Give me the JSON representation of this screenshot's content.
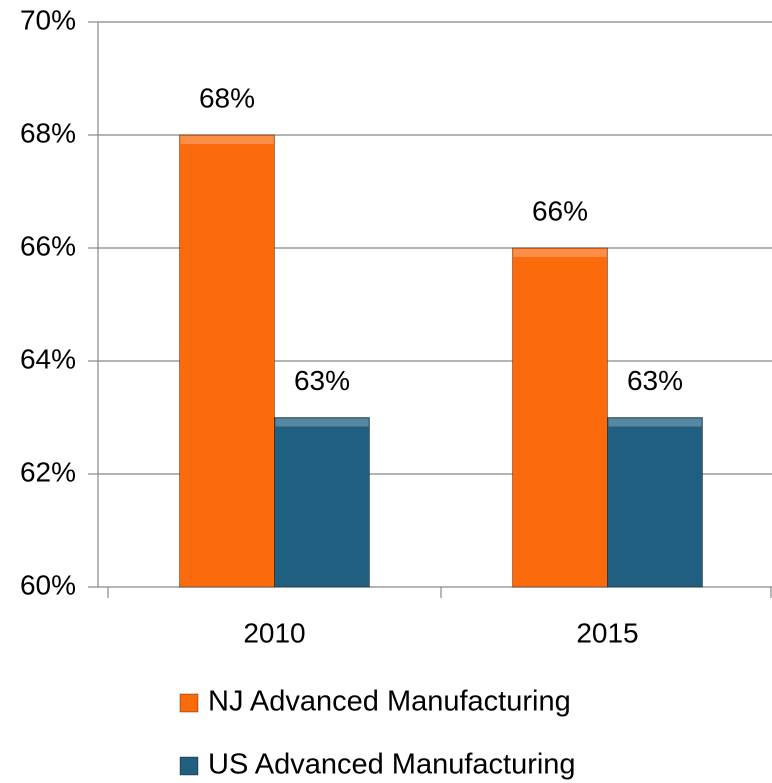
{
  "chart_data": {
    "type": "bar",
    "categories": [
      "2010",
      "2015"
    ],
    "series": [
      {
        "name": "NJ Advanced Manufacturing",
        "color": "#fb6a0b",
        "values": [
          68,
          66
        ],
        "value_labels": [
          "68%",
          "66%"
        ]
      },
      {
        "name": "US Advanced Manufacturing",
        "color": "#215f80",
        "values": [
          63,
          63
        ],
        "value_labels": [
          "63%",
          "63%"
        ]
      }
    ],
    "ylim": [
      60,
      70
    ],
    "yticks": [
      {
        "value": 60,
        "label": "60%"
      },
      {
        "value": 62,
        "label": "62%"
      },
      {
        "value": 64,
        "label": "64%"
      },
      {
        "value": 66,
        "label": "66%"
      },
      {
        "value": 68,
        "label": "68%"
      },
      {
        "value": 70,
        "label": "70%"
      }
    ],
    "grid": true
  }
}
